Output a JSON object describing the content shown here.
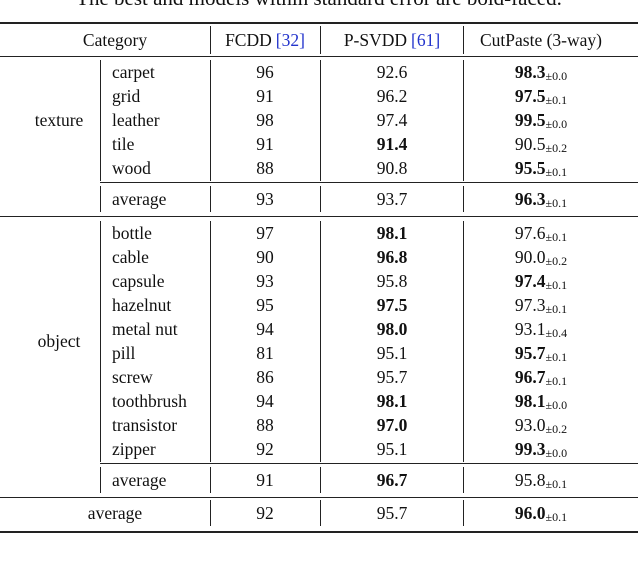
{
  "caption_top": "The best and models within standard error are bold-faced.",
  "header": {
    "category": "Category",
    "columns": [
      {
        "name": "FCDD",
        "cite": "[32]"
      },
      {
        "name": "P-SVDD",
        "cite": "[61]"
      },
      {
        "name": "CutPaste (3-way)"
      }
    ]
  },
  "groups": [
    {
      "label": "texture",
      "rows": [
        {
          "name": "carpet",
          "cells": [
            {
              "v": "96"
            },
            {
              "v": "92.6"
            },
            {
              "v": "98.3",
              "std": "±0.0",
              "bold": true
            }
          ]
        },
        {
          "name": "grid",
          "cells": [
            {
              "v": "91"
            },
            {
              "v": "96.2"
            },
            {
              "v": "97.5",
              "std": "±0.1",
              "bold": true
            }
          ]
        },
        {
          "name": "leather",
          "cells": [
            {
              "v": "98"
            },
            {
              "v": "97.4"
            },
            {
              "v": "99.5",
              "std": "±0.0",
              "bold": true
            }
          ]
        },
        {
          "name": "tile",
          "cells": [
            {
              "v": "91"
            },
            {
              "v": "91.4",
              "bold": true
            },
            {
              "v": "90.5",
              "std": "±0.2"
            }
          ]
        },
        {
          "name": "wood",
          "cells": [
            {
              "v": "88"
            },
            {
              "v": "90.8"
            },
            {
              "v": "95.5",
              "std": "±0.1",
              "bold": true
            }
          ]
        }
      ],
      "average": {
        "name": "average",
        "cells": [
          {
            "v": "93"
          },
          {
            "v": "93.7"
          },
          {
            "v": "96.3",
            "std": "±0.1",
            "bold": true
          }
        ]
      }
    },
    {
      "label": "object",
      "rows": [
        {
          "name": "bottle",
          "cells": [
            {
              "v": "97"
            },
            {
              "v": "98.1",
              "bold": true
            },
            {
              "v": "97.6",
              "std": "±0.1"
            }
          ]
        },
        {
          "name": "cable",
          "cells": [
            {
              "v": "90"
            },
            {
              "v": "96.8",
              "bold": true
            },
            {
              "v": "90.0",
              "std": "±0.2"
            }
          ]
        },
        {
          "name": "capsule",
          "cells": [
            {
              "v": "93"
            },
            {
              "v": "95.8"
            },
            {
              "v": "97.4",
              "std": "±0.1",
              "bold": true
            }
          ]
        },
        {
          "name": "hazelnut",
          "cells": [
            {
              "v": "95"
            },
            {
              "v": "97.5",
              "bold": true
            },
            {
              "v": "97.3",
              "std": "±0.1"
            }
          ]
        },
        {
          "name": "metal nut",
          "cells": [
            {
              "v": "94"
            },
            {
              "v": "98.0",
              "bold": true
            },
            {
              "v": "93.1",
              "std": "±0.4"
            }
          ]
        },
        {
          "name": "pill",
          "cells": [
            {
              "v": "81"
            },
            {
              "v": "95.1"
            },
            {
              "v": "95.7",
              "std": "±0.1",
              "bold": true
            }
          ]
        },
        {
          "name": "screw",
          "cells": [
            {
              "v": "86"
            },
            {
              "v": "95.7"
            },
            {
              "v": "96.7",
              "std": "±0.1",
              "bold": true
            }
          ]
        },
        {
          "name": "toothbrush",
          "cells": [
            {
              "v": "94"
            },
            {
              "v": "98.1",
              "bold": true
            },
            {
              "v": "98.1",
              "std": "±0.0",
              "bold": true
            }
          ]
        },
        {
          "name": "transistor",
          "cells": [
            {
              "v": "88"
            },
            {
              "v": "97.0",
              "bold": true
            },
            {
              "v": "93.0",
              "std": "±0.2"
            }
          ]
        },
        {
          "name": "zipper",
          "cells": [
            {
              "v": "92"
            },
            {
              "v": "95.1"
            },
            {
              "v": "99.3",
              "std": "±0.0",
              "bold": true
            }
          ]
        }
      ],
      "average": {
        "name": "average",
        "cells": [
          {
            "v": "91"
          },
          {
            "v": "96.7",
            "bold": true
          },
          {
            "v": "95.8",
            "std": "±0.1"
          }
        ]
      }
    }
  ],
  "overall": {
    "name": "average",
    "cells": [
      {
        "v": "92"
      },
      {
        "v": "95.7"
      },
      {
        "v": "96.0",
        "std": "±0.1",
        "bold": true
      }
    ]
  }
}
